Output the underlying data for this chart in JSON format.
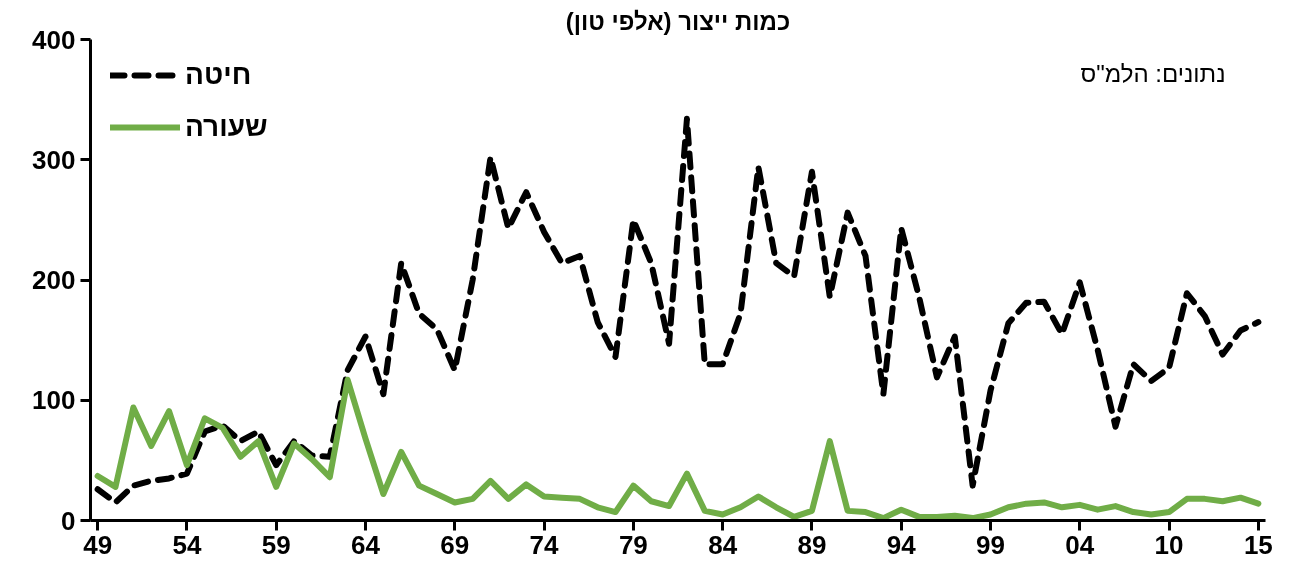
{
  "chart_data": {
    "type": "line",
    "title": "כמות ייצור (אלפי טון)",
    "categories": [
      "49",
      null,
      null,
      null,
      null,
      "54",
      null,
      null,
      null,
      null,
      "59",
      null,
      null,
      null,
      null,
      "64",
      null,
      null,
      null,
      null,
      "69",
      null,
      null,
      null,
      null,
      "74",
      null,
      null,
      null,
      null,
      "79",
      null,
      null,
      null,
      null,
      "84",
      null,
      null,
      null,
      null,
      "89",
      null,
      null,
      null,
      null,
      "94",
      null,
      null,
      null,
      null,
      "99",
      null,
      null,
      null,
      null,
      "04",
      null,
      null,
      null,
      null,
      "10",
      null,
      null,
      null,
      null,
      "15"
    ],
    "series": [
      {
        "name": "חיטה",
        "color": "#000000",
        "line_style": "dashed",
        "values": [
          26,
          15,
          29,
          33,
          35,
          39,
          74,
          79,
          66,
          74,
          46,
          66,
          54,
          53,
          125,
          153,
          105,
          214,
          172,
          159,
          125,
          200,
          302,
          243,
          273,
          240,
          214,
          220,
          165,
          136,
          250,
          214,
          147,
          334,
          130,
          130,
          172,
          294,
          214,
          203,
          290,
          186,
          256,
          220,
          105,
          243,
          186,
          119,
          153,
          29,
          108,
          164,
          181,
          182,
          155,
          198,
          142,
          78,
          130,
          116,
          127,
          189,
          170,
          138,
          158,
          165
        ]
      },
      {
        "name": "שעורה",
        "color": "#70ad47",
        "line_style": "solid",
        "values": [
          37,
          28,
          94,
          62,
          91,
          46,
          85,
          77,
          53,
          66,
          28,
          64,
          51,
          36,
          117,
          68,
          22,
          57,
          29,
          22,
          15,
          18,
          33,
          18,
          30,
          20,
          19,
          18,
          11,
          7,
          29,
          16,
          12,
          39,
          8,
          5,
          11,
          20,
          11,
          3,
          8,
          66,
          8,
          7,
          2,
          9,
          3,
          3,
          4,
          2,
          5,
          11,
          14,
          15,
          11,
          13,
          9,
          12,
          7,
          5,
          7,
          18,
          18,
          16,
          19,
          14
        ]
      }
    ],
    "ylim": [
      0,
      400
    ],
    "yticks": [
      0,
      100,
      200,
      300,
      400
    ],
    "grid": false,
    "legend": "top left",
    "marker": "none",
    "annotations": [
      "נתונים: הלמ\"ס"
    ]
  }
}
